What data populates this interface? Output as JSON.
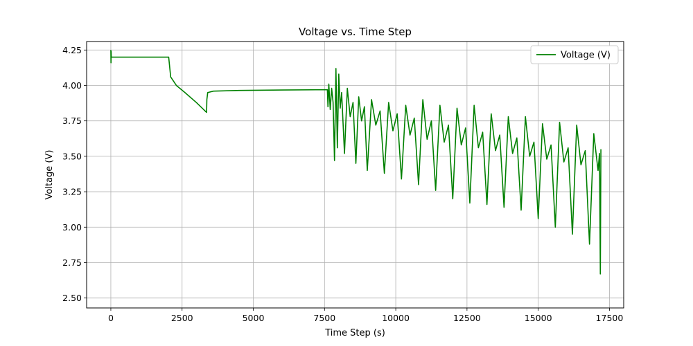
{
  "chart_data": {
    "type": "line",
    "title": "Voltage vs. Time Step",
    "xlabel": "Time Step (s)",
    "ylabel": "Voltage (V)",
    "xlim": [
      -850,
      18000
    ],
    "ylim": [
      2.43,
      4.31
    ],
    "xticks": [
      0,
      2500,
      5000,
      7500,
      10000,
      12500,
      15000,
      17500
    ],
    "yticks": [
      2.5,
      2.75,
      3.0,
      3.25,
      3.5,
      3.75,
      4.0,
      4.25
    ],
    "grid": true,
    "legend_position": "top-right",
    "series": [
      {
        "name": "Voltage (V)",
        "color": "#008000",
        "x": [
          0,
          5,
          10,
          15,
          20,
          30,
          2000,
          2030,
          2100,
          2300,
          2600,
          3000,
          3360,
          3370,
          3400,
          3600,
          4500,
          6000,
          7600,
          7620,
          7650,
          7700,
          7750,
          7800,
          7850,
          7900,
          7950,
          8000,
          8050,
          8100,
          8200,
          8300,
          8400,
          8500,
          8600,
          8700,
          8800,
          8900,
          9000,
          9150,
          9300,
          9450,
          9600,
          9750,
          9900,
          10050,
          10200,
          10350,
          10500,
          10650,
          10800,
          10950,
          11100,
          11250,
          11400,
          11550,
          11700,
          11850,
          12000,
          12150,
          12300,
          12450,
          12600,
          12750,
          12900,
          13050,
          13200,
          13350,
          13500,
          13650,
          13800,
          13950,
          14100,
          14250,
          14400,
          14550,
          14700,
          14850,
          15000,
          15150,
          15300,
          15450,
          15600,
          15750,
          15900,
          16050,
          16200,
          16350,
          16500,
          16650,
          16800,
          16950,
          17100,
          17150,
          17180,
          17200
        ],
        "y": [
          4.25,
          4.16,
          4.24,
          4.2,
          4.2,
          4.2,
          4.2,
          4.2,
          4.06,
          4.0,
          3.95,
          3.88,
          3.81,
          3.9,
          3.95,
          3.96,
          3.965,
          3.968,
          3.97,
          3.85,
          4.01,
          3.83,
          3.98,
          3.88,
          3.47,
          4.12,
          3.56,
          4.08,
          3.84,
          3.95,
          3.52,
          3.98,
          3.78,
          3.88,
          3.45,
          3.92,
          3.75,
          3.85,
          3.4,
          3.9,
          3.72,
          3.82,
          3.38,
          3.88,
          3.68,
          3.8,
          3.34,
          3.86,
          3.65,
          3.77,
          3.3,
          3.9,
          3.62,
          3.75,
          3.26,
          3.86,
          3.6,
          3.72,
          3.2,
          3.84,
          3.58,
          3.7,
          3.17,
          3.86,
          3.56,
          3.67,
          3.16,
          3.8,
          3.54,
          3.65,
          3.14,
          3.78,
          3.52,
          3.63,
          3.12,
          3.78,
          3.5,
          3.6,
          3.06,
          3.73,
          3.48,
          3.58,
          3.0,
          3.74,
          3.46,
          3.56,
          2.95,
          3.72,
          3.44,
          3.54,
          2.88,
          3.66,
          3.4,
          3.52,
          2.67,
          3.55
        ],
        "note": ""
      }
    ]
  }
}
